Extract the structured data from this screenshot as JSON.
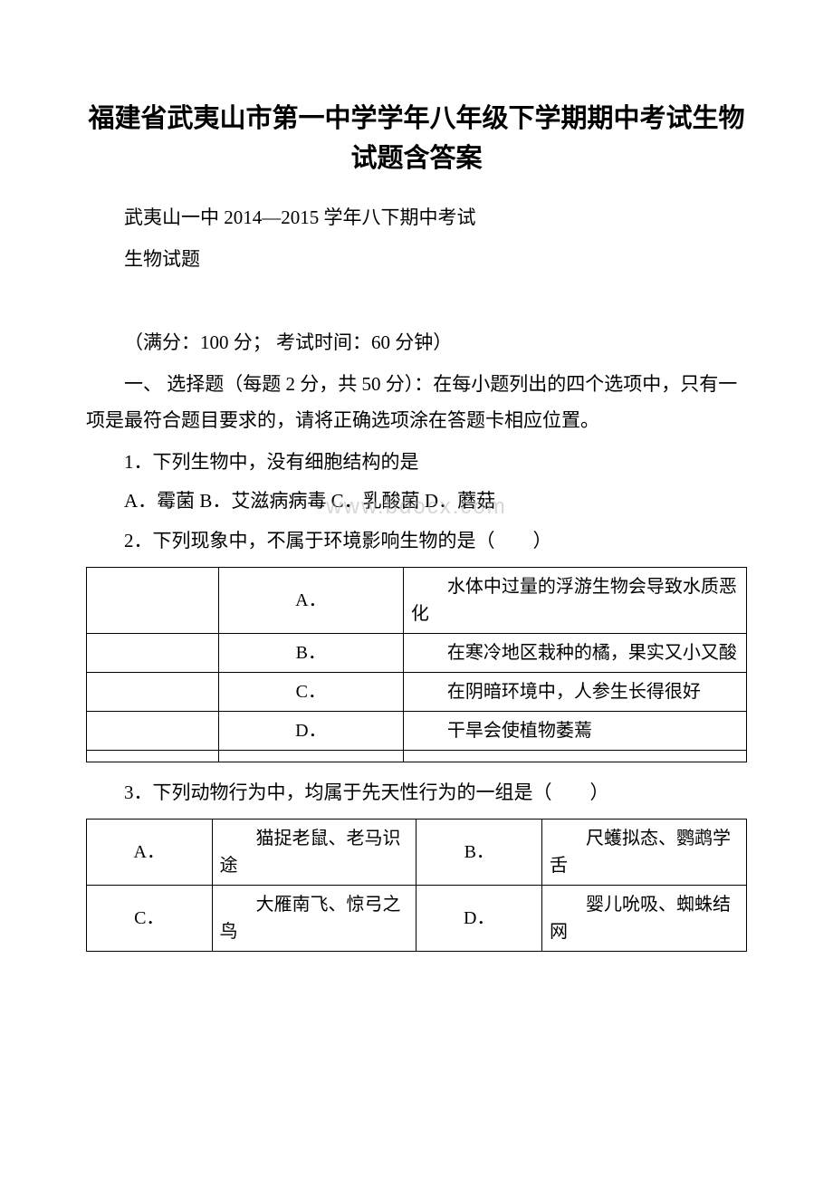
{
  "title": "福建省武夷山市第一中学学年八年级下学期期中考试生物试题含答案",
  "subtitle": "武夷山一中 2014—2015 学年八下期中考试",
  "exam_label": "生物试题",
  "info": "（满分：100 分；  考试时间：60 分钟）",
  "section_intro": "一、 选择题（每题 2 分，共 50 分）：在每小题列出的四个选项中，只有一项是最符合题目要求的，请将正确选项涂在答题卡相应位置。",
  "q1": {
    "text": "1．下列生物中，没有细胞结构的是",
    "options": "A．霉菌 B．艾滋病病毒 C．乳酸菌 D．蘑菇"
  },
  "q2": {
    "text": "2．下列现象中，不属于环境影响生物的是（　　）",
    "options": [
      {
        "label": "A．",
        "text": "水体中过量的浮游生物会导致水质恶化"
      },
      {
        "label": "B．",
        "text": "在寒冷地区栽种的橘，果实又小又酸"
      },
      {
        "label": "C．",
        "text": "在阴暗环境中，人参生长得很好"
      },
      {
        "label": "D．",
        "text": "干旱会使植物萎蔫"
      }
    ]
  },
  "q3": {
    "text": "3．下列动物行为中，均属于先天性行为的一组是（　　）",
    "options": [
      {
        "label": "A．",
        "text": "猫捉老鼠、老马识途"
      },
      {
        "label": "B．",
        "text": "尺蠖拟态、鹦鹉学舌"
      },
      {
        "label": "C．",
        "text": "大雁南飞、惊弓之鸟"
      },
      {
        "label": "D．",
        "text": "婴儿吮吸、蜘蛛结网"
      }
    ]
  },
  "watermark": "www.bdocx.com"
}
